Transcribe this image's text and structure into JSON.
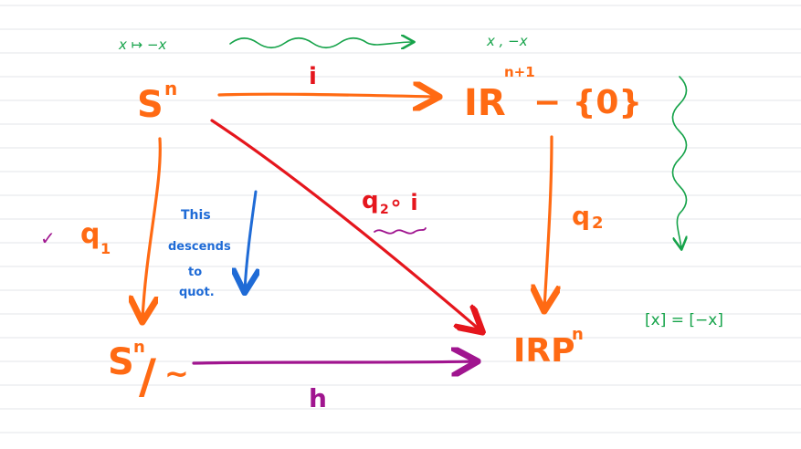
{
  "colors": {
    "orange": "#ff6a13",
    "red": "#e5161d",
    "magenta": "#a0158f",
    "blue": "#1f6bd6",
    "green": "#16a34a",
    "rule": "#e3e6ea",
    "paper": "#ffffff"
  },
  "nodes": {
    "sphere": "S",
    "sphere_sup": "n",
    "real_space": "IR",
    "real_space_sup": "n+1",
    "real_space_minus": "− {0}",
    "quotient": "S",
    "quotient_sup": "n",
    "quotient_slash": "/",
    "quotient_tilde": "~",
    "projective": "IRP",
    "projective_sup": "n"
  },
  "maps": {
    "inclusion": "i",
    "q1": "q",
    "q1_sub": "1",
    "q2": "q",
    "q2_sub": "2",
    "composite": "q",
    "composite_sub": "2",
    "composite_tail": "∘ i",
    "induced": "h"
  },
  "annotations": {
    "top_left": "x ↦ −x",
    "top_right": "x , −x",
    "equivalence": "[x] = [−x]",
    "checkmark": "✓",
    "note_line1": "This",
    "note_line2": "descends",
    "note_line3": "to",
    "note_line4": "quot."
  }
}
